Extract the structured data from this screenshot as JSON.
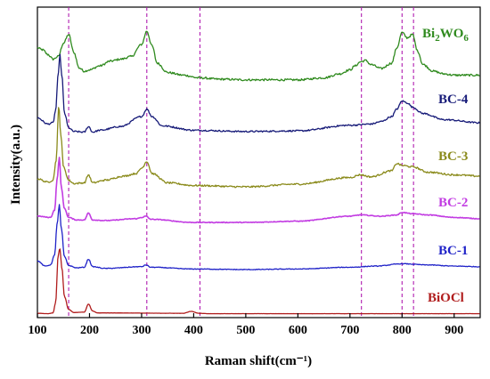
{
  "chart_data": {
    "type": "line",
    "xlabel": "Raman shift(cm⁻¹)",
    "ylabel": "Intensity(a.u.)",
    "xlim": [
      100,
      950
    ],
    "x_ticks": [
      100,
      200,
      300,
      400,
      500,
      600,
      700,
      800,
      900
    ],
    "reference_lines": [
      160,
      310,
      412,
      722,
      800,
      822
    ],
    "reference_line_color": "#b01cb0",
    "series": [
      {
        "name": "Bi₂WO₆",
        "label_main": "Bi",
        "label_sub1": "2",
        "label_mid": "WO",
        "label_sub2": "6",
        "color": "#2f8a1e",
        "offset": 5.0,
        "noise": 0.03,
        "x": [
          100,
          110,
          120,
          130,
          140,
          150,
          160,
          170,
          180,
          190,
          200,
          220,
          240,
          260,
          280,
          300,
          310,
          320,
          330,
          350,
          380,
          410,
          450,
          500,
          550,
          600,
          650,
          680,
          700,
          710,
          720,
          730,
          740,
          760,
          780,
          790,
          800,
          810,
          820,
          830,
          840,
          860,
          880,
          900,
          920,
          950
        ],
        "y": [
          0.55,
          0.52,
          0.45,
          0.38,
          0.42,
          0.62,
          0.75,
          0.48,
          0.25,
          0.2,
          0.22,
          0.28,
          0.35,
          0.38,
          0.42,
          0.6,
          0.8,
          0.58,
          0.32,
          0.18,
          0.14,
          0.1,
          0.08,
          0.07,
          0.07,
          0.07,
          0.1,
          0.16,
          0.22,
          0.28,
          0.34,
          0.36,
          0.3,
          0.24,
          0.32,
          0.55,
          0.78,
          0.7,
          0.75,
          0.5,
          0.3,
          0.2,
          0.16,
          0.14,
          0.14,
          0.14
        ]
      },
      {
        "name": "BC-4",
        "color": "#161a78",
        "offset": 4.0,
        "noise": 0.025,
        "x": [
          100,
          120,
          130,
          135,
          140,
          143,
          147,
          152,
          160,
          170,
          190,
          198,
          206,
          220,
          260,
          300,
          310,
          320,
          340,
          400,
          500,
          600,
          700,
          740,
          760,
          780,
          790,
          800,
          810,
          820,
          840,
          880,
          950
        ],
        "y": [
          0.28,
          0.18,
          0.2,
          0.4,
          0.98,
          1.3,
          0.95,
          0.35,
          0.12,
          0.06,
          0.05,
          0.14,
          0.05,
          0.08,
          0.14,
          0.3,
          0.42,
          0.3,
          0.15,
          0.08,
          0.06,
          0.07,
          0.16,
          0.18,
          0.22,
          0.3,
          0.42,
          0.55,
          0.52,
          0.45,
          0.35,
          0.25,
          0.2
        ]
      },
      {
        "name": "BC-3",
        "color": "#8a8a1a",
        "offset": 3.0,
        "noise": 0.025,
        "x": [
          100,
          120,
          130,
          136,
          141,
          145,
          150,
          160,
          170,
          190,
          198,
          206,
          230,
          265,
          290,
          300,
          310,
          320,
          350,
          400,
          500,
          600,
          700,
          720,
          740,
          780,
          790,
          800,
          820,
          850,
          900,
          950
        ],
        "y": [
          0.12,
          0.07,
          0.1,
          0.4,
          1.2,
          0.78,
          0.3,
          0.1,
          0.05,
          0.06,
          0.18,
          0.06,
          0.1,
          0.16,
          0.2,
          0.28,
          0.38,
          0.2,
          0.06,
          0.02,
          0.0,
          0.04,
          0.14,
          0.18,
          0.15,
          0.24,
          0.35,
          0.32,
          0.3,
          0.22,
          0.18,
          0.16
        ]
      },
      {
        "name": "BC-2",
        "color": "#c23ce2",
        "offset": 2.0,
        "noise": 0.012,
        "x": [
          100,
          125,
          133,
          138,
          142,
          146,
          152,
          160,
          175,
          190,
          198,
          206,
          230,
          290,
          300,
          308,
          318,
          400,
          500,
          600,
          700,
          720,
          760,
          790,
          800,
          820,
          850,
          900,
          950
        ],
        "y": [
          0.1,
          0.08,
          0.2,
          0.7,
          1.05,
          0.55,
          0.22,
          0.08,
          0.04,
          0.04,
          0.15,
          0.04,
          0.03,
          0.06,
          0.08,
          0.1,
          0.05,
          0.0,
          0.0,
          0.02,
          0.1,
          0.12,
          0.1,
          0.12,
          0.16,
          0.14,
          0.12,
          0.08,
          0.06
        ]
      },
      {
        "name": "BC-1",
        "color": "#1f22c8",
        "offset": 1.0,
        "noise": 0.012,
        "x": [
          100,
          115,
          125,
          133,
          138,
          142,
          146,
          152,
          160,
          175,
          190,
          198,
          206,
          230,
          300,
          308,
          318,
          400,
          500,
          600,
          700,
          750,
          800,
          850,
          900,
          950
        ],
        "y": [
          0.15,
          0.06,
          0.08,
          0.25,
          0.8,
          1.12,
          0.7,
          0.22,
          0.07,
          0.03,
          0.04,
          0.18,
          0.05,
          0.02,
          0.05,
          0.08,
          0.04,
          0.01,
          0.0,
          0.01,
          0.04,
          0.06,
          0.1,
          0.08,
          0.06,
          0.05
        ]
      },
      {
        "name": "BiOCl",
        "color": "#b01c1c",
        "offset": 0.0,
        "noise": 0.004,
        "x": [
          100,
          120,
          130,
          135,
          140,
          143,
          147,
          152,
          160,
          170,
          190,
          198,
          206,
          215,
          380,
          395,
          410,
          430,
          600,
          800,
          950
        ],
        "y": [
          0.02,
          0.01,
          0.03,
          0.3,
          1.55,
          1.72,
          1.2,
          0.45,
          0.12,
          0.04,
          0.05,
          0.26,
          0.08,
          0.03,
          0.02,
          0.07,
          0.02,
          0.01,
          0.01,
          0.01,
          0.01
        ]
      }
    ]
  }
}
